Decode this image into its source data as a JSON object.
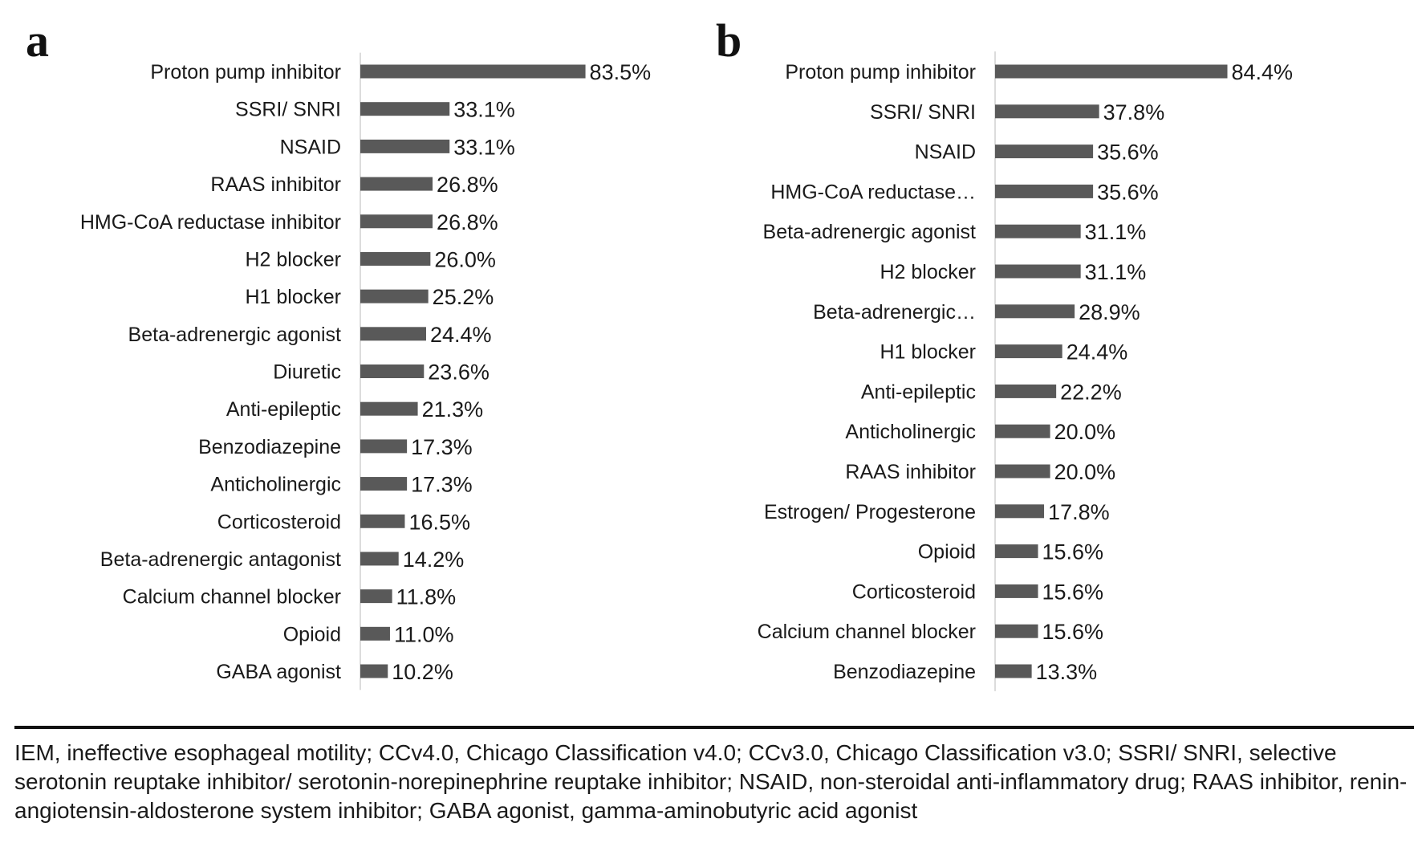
{
  "chart_data": [
    {
      "type": "bar",
      "orientation": "horizontal",
      "panel": "a",
      "categories": [
        "Proton pump inhibitor",
        "SSRI/ SNRI",
        "NSAID",
        "RAAS inhibitor",
        "HMG-CoA reductase inhibitor",
        "H2 blocker",
        "H1 blocker",
        "Beta-adrenergic agonist",
        "Diuretic",
        "Anti-epileptic",
        "Benzodiazepine",
        "Anticholinergic",
        "Corticosteroid",
        "Beta-adrenergic antagonist",
        "Calcium channel blocker",
        "Opioid",
        "GABA agonist"
      ],
      "values": [
        83.5,
        33.1,
        33.1,
        26.8,
        26.8,
        26.0,
        25.2,
        24.4,
        23.6,
        21.3,
        17.3,
        17.3,
        16.5,
        14.2,
        11.8,
        11.0,
        10.2
      ],
      "value_labels": [
        "83.5%",
        "33.1%",
        "33.1%",
        "26.8%",
        "26.8%",
        "26.0%",
        "25.2%",
        "24.4%",
        "23.6%",
        "21.3%",
        "17.3%",
        "17.3%",
        "16.5%",
        "14.2%",
        "11.8%",
        "11.0%",
        "10.2%"
      ],
      "xlim": [
        0,
        100
      ],
      "unit": "%",
      "grid": false,
      "color": "#595959"
    },
    {
      "type": "bar",
      "orientation": "horizontal",
      "panel": "b",
      "categories": [
        "Proton pump inhibitor",
        "SSRI/ SNRI",
        "NSAID",
        "HMG-CoA reductase…",
        "Beta-adrenergic agonist",
        "H2 blocker",
        "Beta-adrenergic…",
        "H1 blocker",
        "Anti-epileptic",
        "Anticholinergic",
        "RAAS inhibitor",
        "Estrogen/ Progesterone",
        "Opioid",
        "Corticosteroid",
        "Calcium channel blocker",
        "Benzodiazepine"
      ],
      "values": [
        84.4,
        37.8,
        35.6,
        35.6,
        31.1,
        31.1,
        28.9,
        24.4,
        22.2,
        20.0,
        20.0,
        17.8,
        15.6,
        15.6,
        15.6,
        13.3
      ],
      "value_labels": [
        "84.4%",
        "37.8%",
        "35.6%",
        "35.6%",
        "31.1%",
        "31.1%",
        "28.9%",
        "24.4%",
        "22.2%",
        "20.0%",
        "20.0%",
        "17.8%",
        "15.6%",
        "15.6%",
        "15.6%",
        "13.3%"
      ],
      "xlim": [
        0,
        100
      ],
      "unit": "%",
      "grid": false,
      "color": "#595959"
    }
  ],
  "footnote": "IEM, ineffective esophageal motility; CCv4.0, Chicago Classification v4.0; CCv3.0, Chicago Classification v3.0; SSRI/ SNRI, selective serotonin reuptake inhibitor/ serotonin-norepinephrine reuptake inhibitor; NSAID, non-steroidal anti-inflammatory drug; RAAS inhibitor, renin-angiotensin-aldosterone system inhibitor; GABA agonist, gamma-aminobutyric acid agonist"
}
